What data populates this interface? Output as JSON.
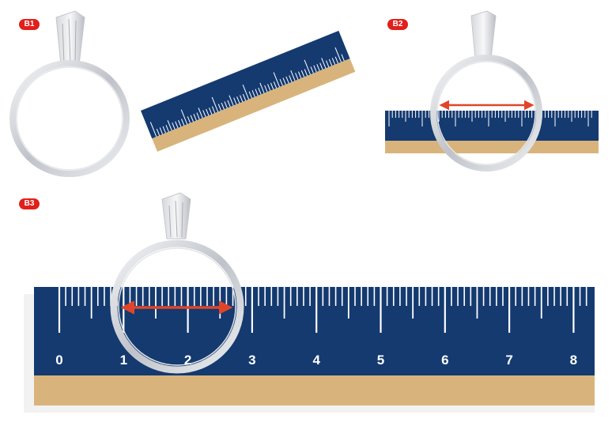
{
  "badges": {
    "b1": "B1",
    "b2": "B2",
    "b3": "B3"
  },
  "ruler": {
    "labels": [
      "0",
      "1",
      "2",
      "3",
      "4",
      "5",
      "6",
      "7",
      "8"
    ]
  },
  "colors": {
    "ruler_blue": "#143a70",
    "ruler_tan": "#d8b47c",
    "badge_red": "#e0201b",
    "arrow_red": "#e0452a",
    "ring_silver": "#c9ccd1"
  },
  "icons": {
    "ring": "solitaire-ring-illustration",
    "arrow": "double-headed-measure-arrow"
  }
}
